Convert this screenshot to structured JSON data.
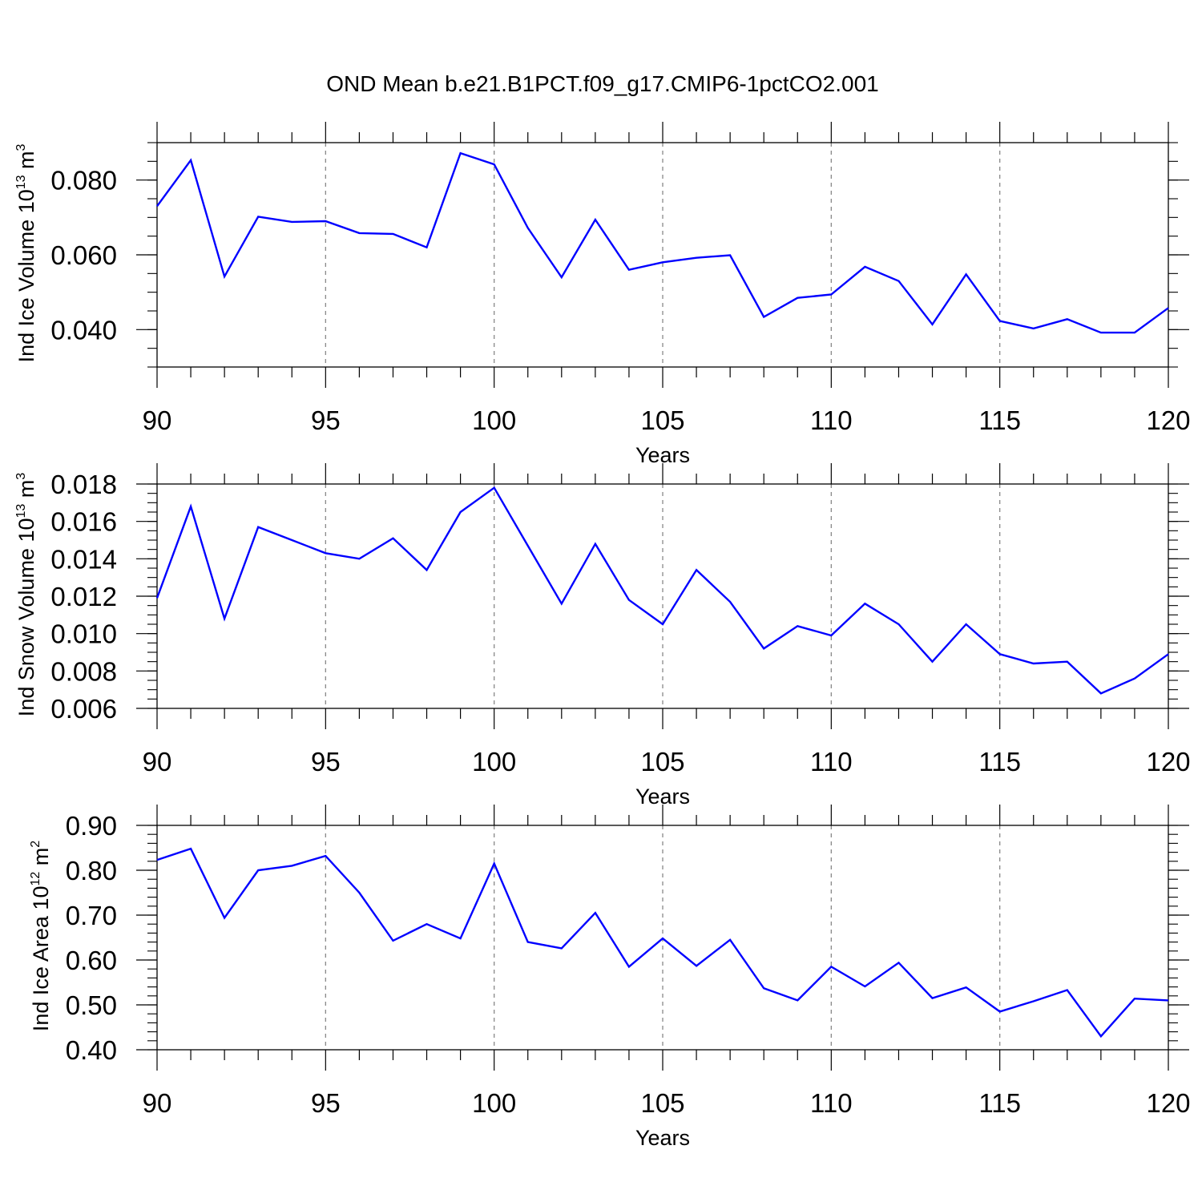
{
  "title": "OND Mean b.e21.B1PCT.f09_g17.CMIP6-1pctCO2.001",
  "chart_data": [
    {
      "type": "line",
      "ylabel": {
        "main": "Ind Ice Volume 10",
        "exp": "13",
        "mid": " m",
        "unit_exp": "3"
      },
      "xlabel": "Years",
      "xlim": [
        90,
        120
      ],
      "ylim": [
        0.03,
        0.09
      ],
      "x_ticks": [
        "90",
        "95",
        "100",
        "105",
        "110",
        "115",
        "120"
      ],
      "y_ticks": [
        {
          "v": 0.04,
          "label": "0.040"
        },
        {
          "v": 0.06,
          "label": "0.060"
        },
        {
          "v": 0.08,
          "label": "0.080"
        }
      ],
      "y_minor_step": 0.005,
      "grid": "x-dashed",
      "line_color": "#0000ff",
      "series": [
        {
          "x": [
            90,
            91,
            92,
            93,
            94,
            95,
            96,
            97,
            98,
            99,
            100,
            101,
            102,
            103,
            104,
            105,
            106,
            107,
            108,
            109,
            110,
            111,
            112,
            113,
            114,
            115,
            116,
            117,
            118,
            119,
            120
          ],
          "values": [
            0.073,
            0.0853,
            0.0542,
            0.0702,
            0.0688,
            0.069,
            0.0658,
            0.0656,
            0.062,
            0.0872,
            0.0842,
            0.0672,
            0.054,
            0.0694,
            0.056,
            0.058,
            0.0592,
            0.0599,
            0.0434,
            0.0485,
            0.0494,
            0.0568,
            0.053,
            0.0414,
            0.0548,
            0.0423,
            0.0403,
            0.0428,
            0.0392,
            0.0392,
            0.0458
          ]
        }
      ]
    },
    {
      "type": "line",
      "ylabel": {
        "main": "Ind Snow Volume 10",
        "exp": "13",
        "mid": " m",
        "unit_exp": "3"
      },
      "xlabel": "Years",
      "xlim": [
        90,
        120
      ],
      "ylim": [
        0.006,
        0.018
      ],
      "x_ticks": [
        "90",
        "95",
        "100",
        "105",
        "110",
        "115",
        "120"
      ],
      "y_ticks": [
        {
          "v": 0.006,
          "label": "0.006"
        },
        {
          "v": 0.008,
          "label": "0.008"
        },
        {
          "v": 0.01,
          "label": "0.010"
        },
        {
          "v": 0.012,
          "label": "0.012"
        },
        {
          "v": 0.014,
          "label": "0.014"
        },
        {
          "v": 0.016,
          "label": "0.016"
        },
        {
          "v": 0.018,
          "label": "0.018"
        }
      ],
      "y_minor_step": 0.0005,
      "grid": "x-dashed",
      "line_color": "#0000ff",
      "series": [
        {
          "x": [
            90,
            91,
            92,
            93,
            94,
            95,
            96,
            97,
            98,
            99,
            100,
            101,
            102,
            103,
            104,
            105,
            106,
            107,
            108,
            109,
            110,
            111,
            112,
            113,
            114,
            115,
            116,
            117,
            118,
            119,
            120
          ],
          "values": [
            0.0119,
            0.0168,
            0.0108,
            0.0157,
            0.015,
            0.0143,
            0.014,
            0.0151,
            0.0134,
            0.0165,
            0.0178,
            0.0147,
            0.0116,
            0.0148,
            0.0118,
            0.0105,
            0.0134,
            0.0117,
            0.0092,
            0.0104,
            0.0099,
            0.0116,
            0.0105,
            0.0085,
            0.0105,
            0.0089,
            0.0084,
            0.0085,
            0.0068,
            0.0076,
            0.0089
          ]
        }
      ]
    },
    {
      "type": "line",
      "ylabel": {
        "main": "Ind Ice Area 10",
        "exp": "12",
        "mid": " m",
        "unit_exp": "2"
      },
      "xlabel": "Years",
      "xlim": [
        90,
        120
      ],
      "ylim": [
        0.4,
        0.9
      ],
      "x_ticks": [
        "90",
        "95",
        "100",
        "105",
        "110",
        "115",
        "120"
      ],
      "y_ticks": [
        {
          "v": 0.4,
          "label": "0.40"
        },
        {
          "v": 0.5,
          "label": "0.50"
        },
        {
          "v": 0.6,
          "label": "0.60"
        },
        {
          "v": 0.7,
          "label": "0.70"
        },
        {
          "v": 0.8,
          "label": "0.80"
        },
        {
          "v": 0.9,
          "label": "0.90"
        }
      ],
      "y_minor_step": 0.02,
      "grid": "x-dashed",
      "line_color": "#0000ff",
      "series": [
        {
          "x": [
            90,
            91,
            92,
            93,
            94,
            95,
            96,
            97,
            98,
            99,
            100,
            101,
            102,
            103,
            104,
            105,
            106,
            107,
            108,
            109,
            110,
            111,
            112,
            113,
            114,
            115,
            116,
            117,
            118,
            119,
            120
          ],
          "values": [
            0.823,
            0.848,
            0.694,
            0.8,
            0.81,
            0.832,
            0.75,
            0.643,
            0.68,
            0.648,
            0.815,
            0.64,
            0.626,
            0.705,
            0.585,
            0.648,
            0.587,
            0.645,
            0.537,
            0.51,
            0.585,
            0.541,
            0.594,
            0.515,
            0.539,
            0.485,
            0.508,
            0.533,
            0.43,
            0.514,
            0.51
          ]
        }
      ]
    }
  ]
}
